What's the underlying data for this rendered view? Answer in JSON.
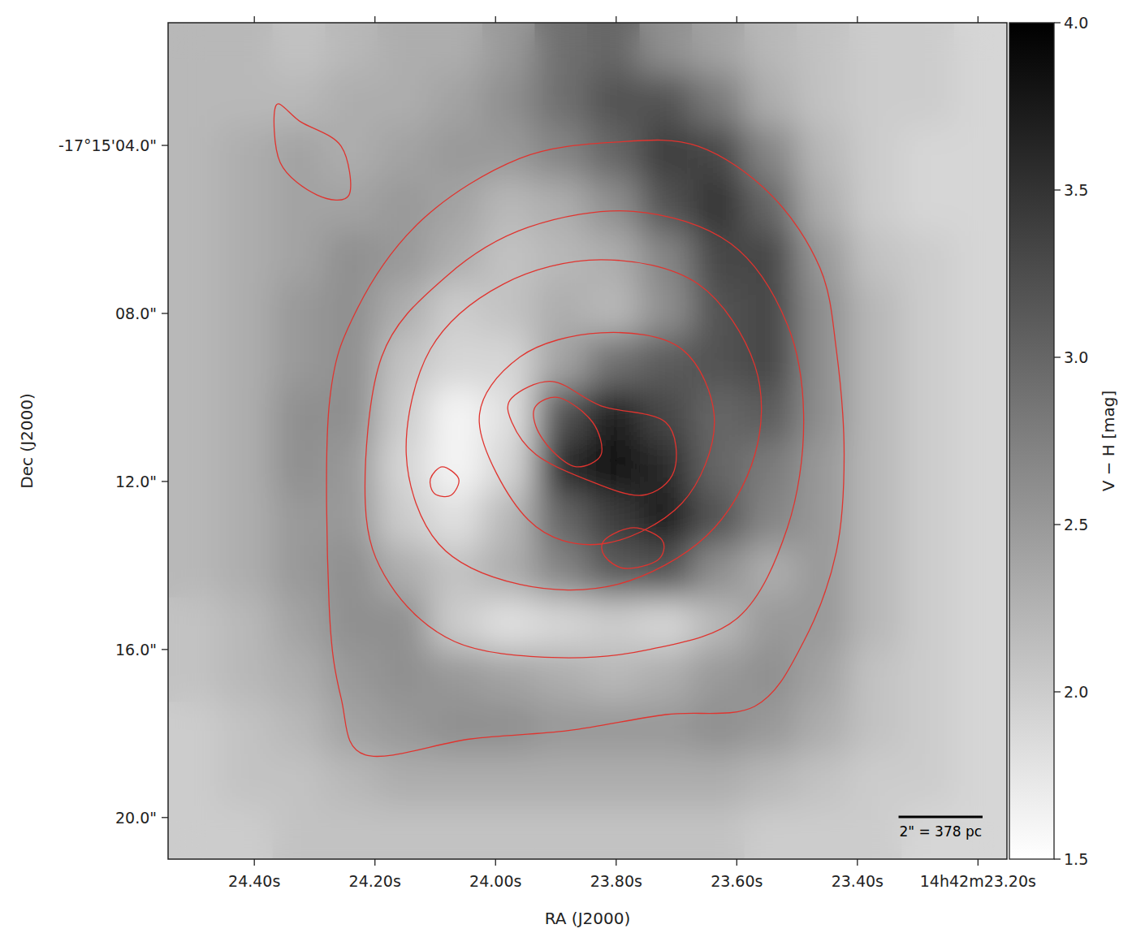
{
  "chart_data": {
    "type": "image",
    "xlabel": "RA (J2000)",
    "ylabel": "Dec (J2000)",
    "xlim": [
      24.543,
      23.152
    ],
    "ylim": [
      20.99,
      1.08
    ],
    "xticks": [
      {
        "value": 24.4,
        "label": "24.40s"
      },
      {
        "value": 24.2,
        "label": "24.20s"
      },
      {
        "value": 24.0,
        "label": "24.00s"
      },
      {
        "value": 23.8,
        "label": "23.80s"
      },
      {
        "value": 23.6,
        "label": "23.60s"
      },
      {
        "value": 23.4,
        "label": "23.40s"
      },
      {
        "value": 23.2,
        "label": "14h42m23.20s"
      }
    ],
    "yticks": [
      {
        "value": 4,
        "label": "-17°15'04.0\""
      },
      {
        "value": 8,
        "label": "08.0\""
      },
      {
        "value": 12,
        "label": "12.0\""
      },
      {
        "value": 16,
        "label": "16.0\""
      },
      {
        "value": 20,
        "label": "20.0\""
      }
    ],
    "cells": [
      [
        2.2,
        2.2,
        2.1,
        2.2,
        2.3,
        2.3,
        2.5,
        2.9,
        3.0,
        2.6,
        2.4,
        2.2,
        2.1,
        2.0,
        2.0,
        1.9
      ],
      [
        2.2,
        2.2,
        2.2,
        2.3,
        2.3,
        2.4,
        2.6,
        2.9,
        3.2,
        3.2,
        2.8,
        2.3,
        2.1,
        2.0,
        2.0,
        1.9
      ],
      [
        2.2,
        2.3,
        2.4,
        2.3,
        2.4,
        2.5,
        2.5,
        2.7,
        3.0,
        3.4,
        3.3,
        2.7,
        2.2,
        2.0,
        1.9,
        1.9
      ],
      [
        2.2,
        2.3,
        2.4,
        2.4,
        2.5,
        2.4,
        2.2,
        2.3,
        2.6,
        3.2,
        3.5,
        3.0,
        2.3,
        2.0,
        1.9,
        1.9
      ],
      [
        2.2,
        2.3,
        2.4,
        2.6,
        2.5,
        2.3,
        2.1,
        2.2,
        2.3,
        2.7,
        3.3,
        3.3,
        2.5,
        2.1,
        2.0,
        1.9
      ],
      [
        2.2,
        2.3,
        2.5,
        2.6,
        2.3,
        2.0,
        2.1,
        2.3,
        2.2,
        2.6,
        3.2,
        3.3,
        2.6,
        2.2,
        2.0,
        1.9
      ],
      [
        2.2,
        2.3,
        2.5,
        2.6,
        2.1,
        1.9,
        1.9,
        2.4,
        2.9,
        3.1,
        3.2,
        3.3,
        2.6,
        2.2,
        2.0,
        1.9
      ],
      [
        2.2,
        2.3,
        2.6,
        2.6,
        2.0,
        1.6,
        1.8,
        3.2,
        3.7,
        3.3,
        3.0,
        3.1,
        2.6,
        2.2,
        2.0,
        1.9
      ],
      [
        2.2,
        2.3,
        2.6,
        2.5,
        1.9,
        1.6,
        1.9,
        3.6,
        3.9,
        3.6,
        3.0,
        2.8,
        2.5,
        2.2,
        2.0,
        1.9
      ],
      [
        2.2,
        2.3,
        2.5,
        2.5,
        2.0,
        1.8,
        2.2,
        3.0,
        3.4,
        3.7,
        3.2,
        2.7,
        2.5,
        2.2,
        2.0,
        1.9
      ],
      [
        2.2,
        2.3,
        2.5,
        2.6,
        2.3,
        2.1,
        2.3,
        2.7,
        3.1,
        3.2,
        2.6,
        2.3,
        2.5,
        2.2,
        2.0,
        1.9
      ],
      [
        2.1,
        2.2,
        2.4,
        2.6,
        2.6,
        2.0,
        1.8,
        1.9,
        2.0,
        1.9,
        2.2,
        2.5,
        2.5,
        2.2,
        2.0,
        1.9
      ],
      [
        2.1,
        2.2,
        2.3,
        2.5,
        2.6,
        2.5,
        2.4,
        2.3,
        2.2,
        2.3,
        2.5,
        2.6,
        2.4,
        2.1,
        2.0,
        1.9
      ],
      [
        2.0,
        2.1,
        2.2,
        2.4,
        2.5,
        2.6,
        2.6,
        2.5,
        2.5,
        2.5,
        2.6,
        2.5,
        2.3,
        2.1,
        2.0,
        1.9
      ],
      [
        2.0,
        2.1,
        2.1,
        2.2,
        2.3,
        2.3,
        2.3,
        2.3,
        2.3,
        2.3,
        2.3,
        2.2,
        2.1,
        2.0,
        2.0,
        1.9
      ],
      [
        2.0,
        2.0,
        2.1,
        2.1,
        2.1,
        2.1,
        2.1,
        2.1,
        2.1,
        2.1,
        2.1,
        2.0,
        2.0,
        2.0,
        1.9,
        1.9
      ]
    ],
    "colorbar": {
      "label": "V − H [mag]",
      "lim": [
        1.5,
        4.0
      ],
      "ticks": [
        1.5,
        {
          "value": 2,
          "label": "2.0"
        },
        2.5,
        {
          "value": 3,
          "label": "3.0"
        },
        3.5,
        {
          "value": 4,
          "label": "4.0"
        }
      ]
    },
    "contour_color": "#e0342f",
    "contours": [
      {
        "ra": [
          24.276,
          24.276,
          24.229,
          24.121,
          23.96,
          23.798,
          23.664,
          23.543,
          23.462,
          23.435,
          23.422,
          23.435,
          23.489,
          23.57,
          23.718,
          23.879,
          24.041,
          24.216,
          24.256
        ],
        "dec": [
          14.94,
          10.2,
          7.88,
          5.76,
          4.31,
          3.92,
          4.02,
          5.18,
          6.92,
          8.85,
          11.36,
          13.68,
          15.81,
          17.35,
          17.55,
          17.93,
          18.13,
          18.51,
          17.16
        ]
      },
      {
        "ra": [
          24.216,
          24.189,
          24.081,
          23.946,
          23.771,
          23.61,
          23.516,
          23.489,
          23.516,
          23.597,
          23.745,
          23.906,
          24.068,
          24.175
        ],
        "dec": [
          12.52,
          9.04,
          7.11,
          5.95,
          5.57,
          6.34,
          8.27,
          10.59,
          13.1,
          15.23,
          16.0,
          16.19,
          15.81,
          14.45
        ]
      },
      {
        "ra": [
          24.148,
          24.108,
          23.987,
          23.825,
          23.664,
          23.57,
          23.57,
          23.65,
          23.798,
          23.96,
          24.094
        ],
        "dec": [
          11.36,
          8.85,
          7.3,
          6.72,
          7.3,
          9.24,
          11.36,
          13.29,
          14.45,
          14.45,
          13.49
        ]
      },
      {
        "ra": [
          24.027,
          23.96,
          23.825,
          23.691,
          23.637,
          23.691,
          23.825,
          23.946
        ],
        "dec": [
          10.59,
          9.04,
          8.46,
          8.85,
          10.59,
          12.52,
          13.49,
          12.91
        ]
      },
      {
        "ra": [
          23.973,
          23.906,
          23.825,
          23.718,
          23.704,
          23.758,
          23.852,
          23.933,
          23.973
        ],
        "dec": [
          10.01,
          9.62,
          10.2,
          10.59,
          11.75,
          12.33,
          11.94,
          11.36,
          10.59
        ]
      },
      {
        "ra": [
          23.933,
          23.893,
          23.839,
          23.825,
          23.866,
          23.906,
          23.933
        ],
        "dec": [
          10.2,
          10.01,
          10.59,
          11.36,
          11.65,
          11.27,
          10.69
        ]
      },
      {
        "ra": [
          23.819,
          23.771,
          23.724,
          23.731,
          23.785,
          23.819
        ],
        "dec": [
          13.39,
          13.1,
          13.39,
          13.87,
          14.07,
          13.78
        ]
      },
      {
        "ra": [
          24.108,
          24.088,
          24.061,
          24.074,
          24.101
        ],
        "dec": [
          11.94,
          11.65,
          11.94,
          12.33,
          12.29
        ]
      },
      {
        "ra": [
          24.364,
          24.323,
          24.256,
          24.243,
          24.296,
          24.357
        ],
        "dec": [
          3.05,
          3.44,
          4.02,
          5.18,
          5.18,
          4.41
        ]
      }
    ],
    "scale_bar": {
      "length": 2,
      "label": "2\" = 378 pc"
    }
  }
}
